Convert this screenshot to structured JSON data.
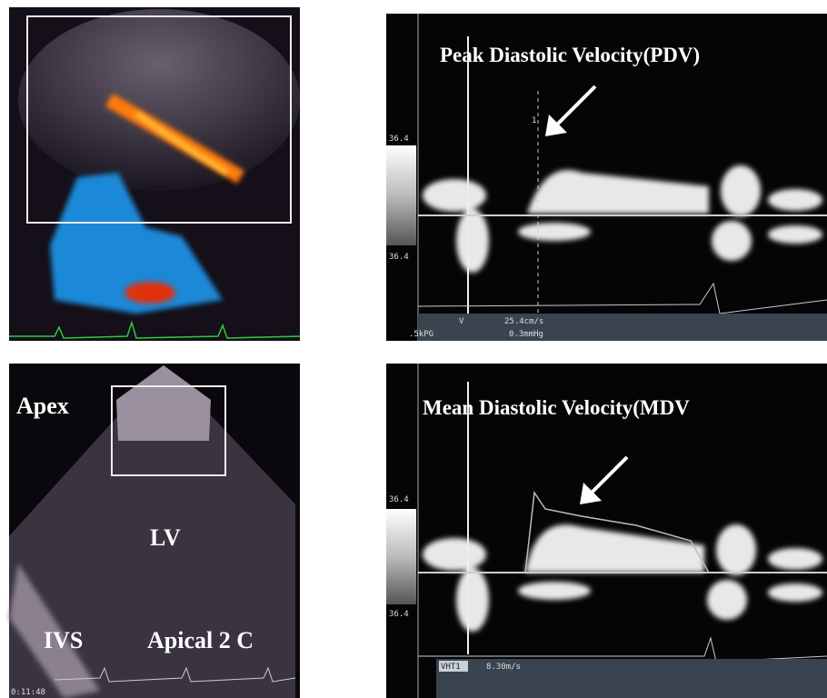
{
  "panels": {
    "color_doppler": {},
    "peak_doppler": {
      "title": "Peak Diastolic Velocity(PDV)",
      "scale_top": "36.4",
      "scale_bottom": "36.4",
      "marker": "1",
      "readout_label": "V",
      "readout_velocity": "25.4cm/s",
      "readout_prf": ".5kPG",
      "readout_gradient": "0.3mmHg"
    },
    "apical_view": {
      "label_apex": "Apex",
      "label_lv": "LV",
      "label_ivs": "IVS",
      "label_view": "Apical 2 C",
      "timestamp": "0:11:48"
    },
    "mean_doppler": {
      "title": "Mean Diastolic Velocity(MDV",
      "scale_top": "36.4",
      "scale_bottom": "36.4",
      "readout_label": "VHT1",
      "readout_velocity": "8.30m/s"
    }
  }
}
